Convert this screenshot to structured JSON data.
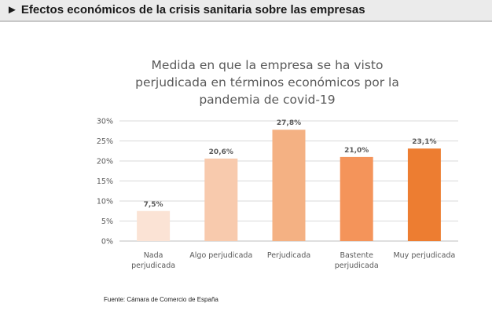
{
  "header": {
    "arrow": "►",
    "title": "Efectos económicos de la crisis sanitaria sobre las empresas"
  },
  "chart_data": {
    "type": "bar",
    "title": "Medida en que la empresa se ha visto perjudicada en términos económicos por la pandemia de covid-19",
    "categories": [
      [
        "Nada",
        "perjudicada"
      ],
      [
        "Algo perjudicada"
      ],
      [
        "Perjudicada"
      ],
      [
        "Bastente",
        "perjudicada"
      ],
      [
        "Muy perjudicada"
      ]
    ],
    "values": [
      7.5,
      20.6,
      27.8,
      21.0,
      23.1
    ],
    "data_labels": [
      "7,5%",
      "20,6%",
      "27,8%",
      "21,0%",
      "23,1%"
    ],
    "colors": [
      "#fbe3d5",
      "#f8caad",
      "#f4b183",
      "#f4945a",
      "#ed7d31"
    ],
    "ylim": [
      0,
      30
    ],
    "yticks": [
      "0%",
      "5%",
      "10%",
      "15%",
      "20%",
      "25%",
      "30%"
    ],
    "grid": true
  },
  "source": "Fuente: Cámara de Comercio de España"
}
